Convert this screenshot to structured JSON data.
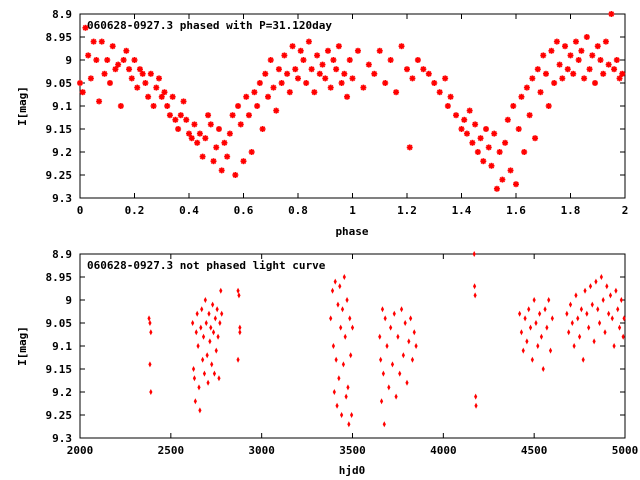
{
  "chart_data": [
    {
      "type": "scatter",
      "title": "060628-0927.3 phased with P=31.120day",
      "xlabel": "phase",
      "ylabel": "I[mag]",
      "xlim": [
        0,
        2
      ],
      "ylim": [
        8.9,
        9.3
      ],
      "y_inverted": true,
      "xticks": [
        "0",
        "0.2",
        "0.4",
        "0.6",
        "0.8",
        "1",
        "1.2",
        "1.4",
        "1.6",
        "1.8",
        "2"
      ],
      "yticks": [
        "8.9",
        "8.95",
        "9",
        "9.05",
        "9.1",
        "9.15",
        "9.2",
        "9.25",
        "9.3"
      ],
      "marker": "star",
      "color": "#ff0000",
      "points": [
        [
          0.0,
          9.05
        ],
        [
          0.01,
          9.07
        ],
        [
          0.02,
          8.93
        ],
        [
          0.03,
          8.99
        ],
        [
          0.04,
          9.04
        ],
        [
          0.05,
          8.96
        ],
        [
          0.06,
          9.0
        ],
        [
          0.07,
          9.09
        ],
        [
          0.08,
          8.96
        ],
        [
          0.09,
          9.03
        ],
        [
          0.1,
          9.0
        ],
        [
          0.11,
          9.05
        ],
        [
          0.12,
          8.97
        ],
        [
          0.13,
          9.02
        ],
        [
          0.14,
          9.01
        ],
        [
          0.15,
          9.1
        ],
        [
          0.16,
          9.0
        ],
        [
          0.17,
          8.98
        ],
        [
          0.18,
          9.02
        ],
        [
          0.19,
          9.04
        ],
        [
          0.2,
          9.0
        ],
        [
          0.21,
          9.06
        ],
        [
          0.22,
          9.02
        ],
        [
          0.23,
          9.03
        ],
        [
          0.24,
          9.05
        ],
        [
          0.25,
          9.08
        ],
        [
          0.26,
          9.03
        ],
        [
          0.27,
          9.1
        ],
        [
          0.28,
          9.06
        ],
        [
          0.29,
          9.04
        ],
        [
          0.3,
          9.08
        ],
        [
          0.31,
          9.07
        ],
        [
          0.32,
          9.1
        ],
        [
          0.33,
          9.12
        ],
        [
          0.34,
          9.08
        ],
        [
          0.35,
          9.13
        ],
        [
          0.36,
          9.15
        ],
        [
          0.37,
          9.12
        ],
        [
          0.38,
          9.09
        ],
        [
          0.39,
          9.13
        ],
        [
          0.4,
          9.16
        ],
        [
          0.41,
          9.17
        ],
        [
          0.42,
          9.14
        ],
        [
          0.43,
          9.18
        ],
        [
          0.44,
          9.16
        ],
        [
          0.45,
          9.21
        ],
        [
          0.46,
          9.17
        ],
        [
          0.47,
          9.12
        ],
        [
          0.48,
          9.14
        ],
        [
          0.49,
          9.22
        ],
        [
          0.5,
          9.19
        ],
        [
          0.51,
          9.15
        ],
        [
          0.52,
          9.24
        ],
        [
          0.53,
          9.18
        ],
        [
          0.54,
          9.21
        ],
        [
          0.55,
          9.16
        ],
        [
          0.56,
          9.12
        ],
        [
          0.57,
          9.25
        ],
        [
          0.58,
          9.1
        ],
        [
          0.59,
          9.14
        ],
        [
          0.6,
          9.22
        ],
        [
          0.61,
          9.08
        ],
        [
          0.62,
          9.12
        ],
        [
          0.63,
          9.2
        ],
        [
          0.64,
          9.07
        ],
        [
          0.65,
          9.1
        ],
        [
          0.66,
          9.05
        ],
        [
          0.67,
          9.15
        ],
        [
          0.68,
          9.03
        ],
        [
          0.69,
          9.08
        ],
        [
          0.7,
          9.0
        ],
        [
          0.71,
          9.06
        ],
        [
          0.72,
          9.11
        ],
        [
          0.73,
          9.02
        ],
        [
          0.74,
          9.05
        ],
        [
          0.75,
          8.99
        ],
        [
          0.76,
          9.03
        ],
        [
          0.77,
          9.07
        ],
        [
          0.78,
          8.97
        ],
        [
          0.79,
          9.02
        ],
        [
          0.8,
          9.04
        ],
        [
          0.81,
          8.98
        ],
        [
          0.82,
          9.0
        ],
        [
          0.83,
          9.05
        ],
        [
          0.84,
          8.96
        ],
        [
          0.85,
          9.02
        ],
        [
          0.86,
          9.07
        ],
        [
          0.87,
          8.99
        ],
        [
          0.88,
          9.03
        ],
        [
          0.89,
          9.01
        ],
        [
          0.9,
          9.04
        ],
        [
          0.91,
          8.98
        ],
        [
          0.92,
          9.06
        ],
        [
          0.93,
          9.0
        ],
        [
          0.94,
          9.02
        ],
        [
          0.95,
          8.97
        ],
        [
          0.96,
          9.05
        ],
        [
          0.97,
          9.03
        ],
        [
          0.98,
          9.08
        ],
        [
          0.99,
          9.0
        ],
        [
          1.0,
          9.04
        ],
        [
          1.02,
          8.98
        ],
        [
          1.04,
          9.06
        ],
        [
          1.06,
          9.01
        ],
        [
          1.08,
          9.03
        ],
        [
          1.1,
          8.98
        ],
        [
          1.12,
          9.05
        ],
        [
          1.14,
          9.0
        ],
        [
          1.16,
          9.07
        ],
        [
          1.18,
          8.97
        ],
        [
          1.2,
          9.02
        ],
        [
          1.21,
          9.19
        ],
        [
          1.22,
          9.04
        ],
        [
          1.24,
          9.0
        ],
        [
          1.26,
          9.02
        ],
        [
          1.28,
          9.03
        ],
        [
          1.3,
          9.05
        ],
        [
          1.32,
          9.07
        ],
        [
          1.34,
          9.04
        ],
        [
          1.35,
          9.1
        ],
        [
          1.36,
          9.08
        ],
        [
          1.38,
          9.12
        ],
        [
          1.4,
          9.15
        ],
        [
          1.41,
          9.13
        ],
        [
          1.42,
          9.16
        ],
        [
          1.43,
          9.11
        ],
        [
          1.44,
          9.18
        ],
        [
          1.45,
          9.14
        ],
        [
          1.46,
          9.2
        ],
        [
          1.47,
          9.17
        ],
        [
          1.48,
          9.22
        ],
        [
          1.49,
          9.15
        ],
        [
          1.5,
          9.19
        ],
        [
          1.51,
          9.23
        ],
        [
          1.52,
          9.16
        ],
        [
          1.53,
          9.28
        ],
        [
          1.54,
          9.2
        ],
        [
          1.55,
          9.26
        ],
        [
          1.56,
          9.18
        ],
        [
          1.57,
          9.13
        ],
        [
          1.58,
          9.24
        ],
        [
          1.59,
          9.1
        ],
        [
          1.6,
          9.27
        ],
        [
          1.61,
          9.15
        ],
        [
          1.62,
          9.08
        ],
        [
          1.63,
          9.2
        ],
        [
          1.64,
          9.06
        ],
        [
          1.65,
          9.12
        ],
        [
          1.66,
          9.04
        ],
        [
          1.67,
          9.17
        ],
        [
          1.68,
          9.02
        ],
        [
          1.69,
          9.07
        ],
        [
          1.7,
          8.99
        ],
        [
          1.71,
          9.03
        ],
        [
          1.72,
          9.1
        ],
        [
          1.73,
          8.98
        ],
        [
          1.74,
          9.05
        ],
        [
          1.75,
          8.96
        ],
        [
          1.76,
          9.01
        ],
        [
          1.77,
          9.04
        ],
        [
          1.78,
          8.97
        ],
        [
          1.79,
          9.02
        ],
        [
          1.8,
          8.99
        ],
        [
          1.81,
          9.03
        ],
        [
          1.82,
          8.96
        ],
        [
          1.83,
          9.0
        ],
        [
          1.84,
          8.98
        ],
        [
          1.85,
          9.04
        ],
        [
          1.86,
          8.95
        ],
        [
          1.87,
          9.02
        ],
        [
          1.88,
          8.99
        ],
        [
          1.89,
          9.05
        ],
        [
          1.9,
          8.97
        ],
        [
          1.91,
          9.0
        ],
        [
          1.92,
          9.03
        ],
        [
          1.93,
          8.96
        ],
        [
          1.94,
          9.01
        ],
        [
          1.95,
          8.9
        ],
        [
          1.96,
          9.02
        ],
        [
          1.97,
          9.0
        ],
        [
          1.98,
          9.04
        ],
        [
          1.99,
          9.03
        ]
      ]
    },
    {
      "type": "scatter",
      "title": "060628-0927.3 not phased light curve",
      "xlabel": "hjd0",
      "ylabel": "I[mag]",
      "xlim": [
        2000,
        5000
      ],
      "ylim": [
        8.9,
        9.3
      ],
      "y_inverted": true,
      "xticks": [
        "2000",
        "2500",
        "3000",
        "3500",
        "4000",
        "4500",
        "5000"
      ],
      "yticks": [
        "8.9",
        "8.95",
        "9",
        "9.05",
        "9.1",
        "9.15",
        "9.2",
        "9.25",
        "9.3"
      ],
      "marker": "diamond",
      "color": "#ff0000",
      "points": [
        [
          2380,
          9.04
        ],
        [
          2385,
          9.05
        ],
        [
          2390,
          9.07
        ],
        [
          2385,
          9.14
        ],
        [
          2390,
          9.2
        ],
        [
          2620,
          9.05
        ],
        [
          2625,
          9.15
        ],
        [
          2630,
          9.17
        ],
        [
          2635,
          9.22
        ],
        [
          2640,
          9.07
        ],
        [
          2645,
          9.03
        ],
        [
          2650,
          9.1
        ],
        [
          2655,
          9.19
        ],
        [
          2660,
          9.24
        ],
        [
          2665,
          9.06
        ],
        [
          2670,
          9.02
        ],
        [
          2675,
          9.13
        ],
        [
          2680,
          9.08
        ],
        [
          2685,
          9.16
        ],
        [
          2690,
          9.0
        ],
        [
          2695,
          9.05
        ],
        [
          2700,
          9.12
        ],
        [
          2705,
          9.18
        ],
        [
          2710,
          9.03
        ],
        [
          2715,
          9.09
        ],
        [
          2720,
          9.06
        ],
        [
          2725,
          9.14
        ],
        [
          2730,
          9.01
        ],
        [
          2735,
          9.07
        ],
        [
          2740,
          9.16
        ],
        [
          2745,
          9.04
        ],
        [
          2750,
          9.11
        ],
        [
          2755,
          9.02
        ],
        [
          2760,
          9.08
        ],
        [
          2765,
          9.17
        ],
        [
          2770,
          9.05
        ],
        [
          2775,
          8.98
        ],
        [
          2780,
          9.03
        ],
        [
          2870,
          8.98
        ],
        [
          2875,
          8.99
        ],
        [
          2880,
          9.06
        ],
        [
          2880,
          9.07
        ],
        [
          2870,
          9.13
        ],
        [
          3380,
          9.04
        ],
        [
          3390,
          8.98
        ],
        [
          3395,
          9.1
        ],
        [
          3400,
          9.2
        ],
        [
          3405,
          8.96
        ],
        [
          3410,
          9.13
        ],
        [
          3415,
          9.23
        ],
        [
          3420,
          9.01
        ],
        [
          3425,
          9.17
        ],
        [
          3430,
          8.97
        ],
        [
          3435,
          9.06
        ],
        [
          3440,
          9.25
        ],
        [
          3445,
          9.02
        ],
        [
          3450,
          9.14
        ],
        [
          3455,
          8.95
        ],
        [
          3460,
          9.08
        ],
        [
          3465,
          9.21
        ],
        [
          3470,
          9.0
        ],
        [
          3475,
          9.19
        ],
        [
          3480,
          9.27
        ],
        [
          3485,
          9.04
        ],
        [
          3490,
          9.12
        ],
        [
          3495,
          9.25
        ],
        [
          3500,
          9.06
        ],
        [
          3650,
          9.08
        ],
        [
          3655,
          9.13
        ],
        [
          3660,
          9.22
        ],
        [
          3665,
          9.02
        ],
        [
          3670,
          9.16
        ],
        [
          3675,
          9.27
        ],
        [
          3680,
          9.04
        ],
        [
          3690,
          9.1
        ],
        [
          3700,
          9.19
        ],
        [
          3710,
          9.06
        ],
        [
          3720,
          9.14
        ],
        [
          3730,
          9.03
        ],
        [
          3740,
          9.21
        ],
        [
          3750,
          9.08
        ],
        [
          3760,
          9.16
        ],
        [
          3770,
          9.02
        ],
        [
          3780,
          9.12
        ],
        [
          3790,
          9.05
        ],
        [
          3800,
          9.18
        ],
        [
          3810,
          9.09
        ],
        [
          3820,
          9.04
        ],
        [
          3830,
          9.13
        ],
        [
          3840,
          9.07
        ],
        [
          3850,
          9.1
        ],
        [
          4170,
          8.9
        ],
        [
          4172,
          8.97
        ],
        [
          4175,
          8.99
        ],
        [
          4178,
          9.21
        ],
        [
          4180,
          9.23
        ],
        [
          4420,
          9.03
        ],
        [
          4430,
          9.07
        ],
        [
          4440,
          9.11
        ],
        [
          4450,
          9.04
        ],
        [
          4460,
          9.09
        ],
        [
          4470,
          9.02
        ],
        [
          4480,
          9.06
        ],
        [
          4490,
          9.13
        ],
        [
          4500,
          9.0
        ],
        [
          4510,
          9.05
        ],
        [
          4520,
          9.1
        ],
        [
          4530,
          9.03
        ],
        [
          4540,
          9.08
        ],
        [
          4550,
          9.15
        ],
        [
          4560,
          9.02
        ],
        [
          4570,
          9.06
        ],
        [
          4580,
          9.0
        ],
        [
          4590,
          9.11
        ],
        [
          4600,
          9.04
        ],
        [
          4680,
          9.03
        ],
        [
          4690,
          9.07
        ],
        [
          4700,
          9.01
        ],
        [
          4710,
          9.05
        ],
        [
          4720,
          9.1
        ],
        [
          4730,
          8.99
        ],
        [
          4740,
          9.04
        ],
        [
          4750,
          9.08
        ],
        [
          4760,
          9.02
        ],
        [
          4770,
          9.13
        ],
        [
          4780,
          8.98
        ],
        [
          4790,
          9.03
        ],
        [
          4800,
          9.06
        ],
        [
          4810,
          8.97
        ],
        [
          4820,
          9.01
        ],
        [
          4830,
          9.09
        ],
        [
          4840,
          8.96
        ],
        [
          4850,
          9.02
        ],
        [
          4860,
          9.05
        ],
        [
          4870,
          8.95
        ],
        [
          4880,
          9.0
        ],
        [
          4890,
          9.07
        ],
        [
          4900,
          8.97
        ],
        [
          4910,
          9.03
        ],
        [
          4920,
          8.99
        ],
        [
          4930,
          9.04
        ],
        [
          4940,
          9.1
        ],
        [
          4950,
          8.98
        ],
        [
          4960,
          9.02
        ],
        [
          4970,
          9.06
        ],
        [
          4980,
          9.0
        ],
        [
          4990,
          9.08
        ],
        [
          4995,
          9.04
        ]
      ]
    }
  ]
}
